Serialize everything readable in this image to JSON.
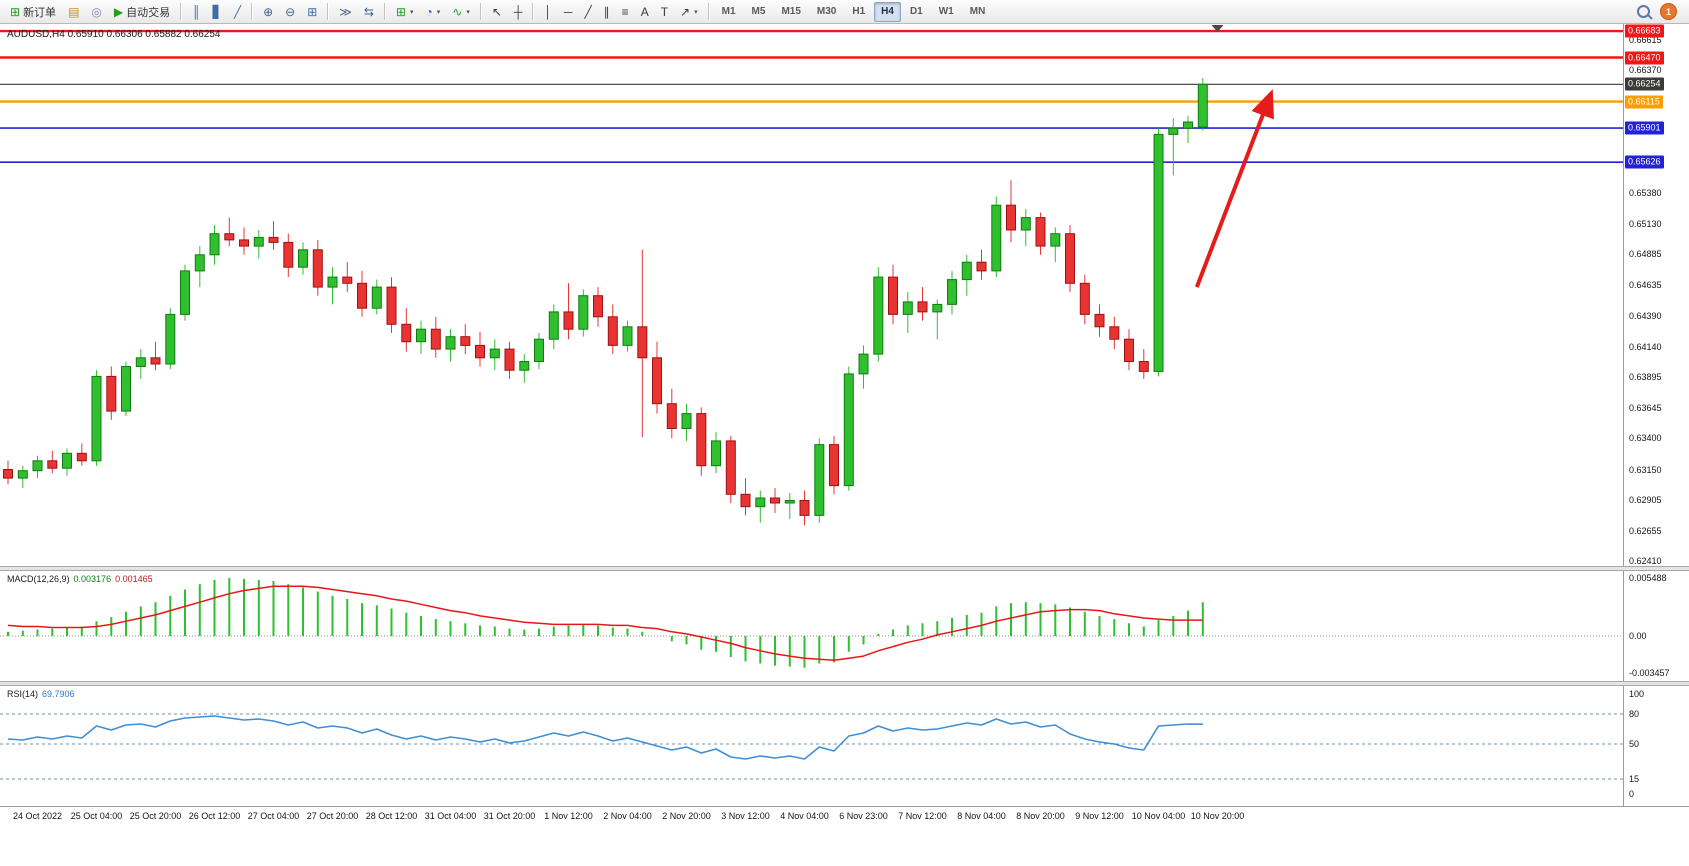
{
  "toolbar": {
    "dropdown_glyph": "▾",
    "groups": [
      {
        "name": "orders",
        "buttons": [
          {
            "name": "new-order",
            "glyph": "⊞",
            "glyph_color": "#1fa01f",
            "label": "新订单"
          },
          {
            "name": "charts-window",
            "glyph": "▤",
            "glyph_color": "#c09020"
          },
          {
            "name": "profiles",
            "glyph": "◎",
            "glyph_color": "#7a8aa0"
          },
          {
            "name": "auto-trading",
            "glyph": "▶",
            "glyph_color": "#1fa01f",
            "label": "自动交易"
          }
        ]
      },
      {
        "name": "chart-types",
        "buttons": [
          {
            "name": "bar-chart-type",
            "glyph": "║",
            "glyph_color": "#3a6ea5"
          },
          {
            "name": "candlestick-chart-type",
            "glyph": "▋",
            "glyph_color": "#3a6ea5"
          },
          {
            "name": "line-chart-type",
            "glyph": "╱",
            "glyph_color": "#3a6ea5"
          }
        ]
      },
      {
        "name": "zoom",
        "buttons": [
          {
            "name": "zoom-in",
            "glyph": "⊕",
            "glyph_color": "#44628a"
          },
          {
            "name": "zoom-out",
            "glyph": "⊖",
            "glyph_color": "#44628a"
          },
          {
            "name": "tile-windows",
            "glyph": "⊞",
            "glyph_color": "#3a6ea5"
          }
        ]
      },
      {
        "name": "scrolling",
        "buttons": [
          {
            "name": "auto-scroll",
            "glyph": "≫",
            "glyph_color": "#44628a"
          },
          {
            "name": "chart-shift",
            "glyph": "⇆",
            "glyph_color": "#44628a"
          }
        ]
      },
      {
        "name": "objects",
        "buttons": [
          {
            "name": "new-chart",
            "glyph": "⊞",
            "glyph_color": "#1fa01f",
            "dropdown": true
          },
          {
            "name": "period-presets",
            "glyph": "◔",
            "glyph_color": "#2a62b8",
            "dropdown": true
          },
          {
            "name": "indicators",
            "glyph": "∿",
            "glyph_color": "#1fa01f",
            "dropdown": true
          }
        ]
      },
      {
        "name": "drawing",
        "buttons": [
          {
            "name": "cursor",
            "glyph": "↖",
            "glyph_color": "#3c3c3c"
          },
          {
            "name": "crosshair",
            "glyph": "┼",
            "glyph_color": "#3c3c3c"
          }
        ]
      },
      {
        "name": "lines",
        "buttons": [
          {
            "name": "vertical-line",
            "glyph": "│",
            "glyph_color": "#3c3c3c"
          },
          {
            "name": "horizontal-line",
            "glyph": "─",
            "glyph_color": "#3c3c3c"
          },
          {
            "name": "trend-line",
            "glyph": "╱",
            "glyph_color": "#3c3c3c"
          },
          {
            "name": "equidistant-channel",
            "glyph": "∥",
            "glyph_color": "#3c3c3c"
          },
          {
            "name": "fibonacci",
            "glyph": "≡",
            "glyph_color": "#3c3c3c"
          },
          {
            "name": "text",
            "glyph": "A",
            "glyph_color": "#3c3c3c"
          },
          {
            "name": "text-label",
            "glyph": "T",
            "glyph_color": "#3c3c3c"
          },
          {
            "name": "arrows-tool",
            "glyph": "↗",
            "glyph_color": "#3c3c3c",
            "dropdown": true
          }
        ]
      }
    ],
    "timeframes": {
      "items": [
        "M1",
        "M5",
        "M15",
        "M30",
        "H1",
        "H4",
        "D1",
        "W1",
        "MN"
      ],
      "active": "H4"
    },
    "right": {
      "notification_count": "1"
    }
  },
  "chart_data": {
    "type": "candlestick",
    "symbol": "AUDUSD",
    "period": "H4",
    "ohlc_label": "AUDUSD,H4 0.65910 0.66306 0.65882 0.66254",
    "current_bar": {
      "open": "0.65910",
      "high": "0.66306",
      "low": "0.65882",
      "close": "0.66254"
    },
    "grid": false,
    "up_color": "#2fbf2f",
    "up_border": "#0f7d0f",
    "down_color": "#e93434",
    "down_border": "#9e1212",
    "y_axis": {
      "min": 0.62372,
      "max": 0.6674,
      "ticks": [
        "0.66615",
        "0.66370",
        "0.65380",
        "0.65130",
        "0.64885",
        "0.64635",
        "0.64390",
        "0.64140",
        "0.63895",
        "0.63645",
        "0.63400",
        "0.63150",
        "0.62905",
        "0.62655",
        "0.62410"
      ]
    },
    "levels": [
      {
        "name": "resistance-line-upper",
        "price": 0.66683,
        "label": "0.66683",
        "color": "#f21616",
        "width": 2.4
      },
      {
        "name": "resistance-line-lower",
        "price": 0.6647,
        "label": "0.66470",
        "color": "#f21616",
        "width": 2.4
      },
      {
        "name": "current-price-line",
        "price": 0.66254,
        "label": "0.66254",
        "color": "#3a3a3a",
        "width": 1.2
      },
      {
        "name": "orange-level-line",
        "price": 0.66115,
        "label": "0.66115",
        "color": "#ff9d00",
        "width": 2.4
      },
      {
        "name": "blue-level-upper",
        "price": 0.65901,
        "label": "0.65901",
        "color": "#2323d6",
        "width": 1.6
      },
      {
        "name": "blue-level-lower",
        "price": 0.65626,
        "label": "0.65626",
        "color": "#2323d6",
        "width": 1.6
      }
    ],
    "arrow": {
      "from_index": 80.6,
      "from_price": 0.6462,
      "to_index": 85.6,
      "to_price": 0.6617,
      "color": "#e51c1c"
    },
    "shift_marker_index": 82,
    "candles": [
      [
        0.6315,
        0.6322,
        0.6303,
        0.6308
      ],
      [
        0.6308,
        0.6318,
        0.63,
        0.6314
      ],
      [
        0.6314,
        0.6326,
        0.6308,
        0.6322
      ],
      [
        0.6322,
        0.633,
        0.6312,
        0.6316
      ],
      [
        0.6316,
        0.6332,
        0.631,
        0.6328
      ],
      [
        0.6328,
        0.6336,
        0.6318,
        0.6322
      ],
      [
        0.6322,
        0.6395,
        0.6318,
        0.639
      ],
      [
        0.639,
        0.6398,
        0.6355,
        0.6362
      ],
      [
        0.6362,
        0.6402,
        0.6358,
        0.6398
      ],
      [
        0.6398,
        0.6412,
        0.6388,
        0.6405
      ],
      [
        0.6405,
        0.6418,
        0.6395,
        0.64
      ],
      [
        0.64,
        0.6445,
        0.6396,
        0.644
      ],
      [
        0.644,
        0.648,
        0.6435,
        0.6475
      ],
      [
        0.6475,
        0.6495,
        0.6462,
        0.6488
      ],
      [
        0.6488,
        0.6512,
        0.648,
        0.6505
      ],
      [
        0.6505,
        0.6518,
        0.6495,
        0.65
      ],
      [
        0.65,
        0.651,
        0.6488,
        0.6495
      ],
      [
        0.6495,
        0.6508,
        0.6485,
        0.6502
      ],
      [
        0.6502,
        0.6515,
        0.6492,
        0.6498
      ],
      [
        0.6498,
        0.6505,
        0.647,
        0.6478
      ],
      [
        0.6478,
        0.6498,
        0.6472,
        0.6492
      ],
      [
        0.6492,
        0.65,
        0.6455,
        0.6462
      ],
      [
        0.6462,
        0.6478,
        0.6448,
        0.647
      ],
      [
        0.647,
        0.6482,
        0.6458,
        0.6465
      ],
      [
        0.6465,
        0.6475,
        0.6438,
        0.6445
      ],
      [
        0.6445,
        0.6468,
        0.644,
        0.6462
      ],
      [
        0.6462,
        0.647,
        0.6425,
        0.6432
      ],
      [
        0.6432,
        0.6445,
        0.641,
        0.6418
      ],
      [
        0.6418,
        0.6435,
        0.6408,
        0.6428
      ],
      [
        0.6428,
        0.6438,
        0.6405,
        0.6412
      ],
      [
        0.6412,
        0.6428,
        0.6402,
        0.6422
      ],
      [
        0.6422,
        0.6432,
        0.6408,
        0.6415
      ],
      [
        0.6415,
        0.6426,
        0.6398,
        0.6405
      ],
      [
        0.6405,
        0.642,
        0.6395,
        0.6412
      ],
      [
        0.6412,
        0.6418,
        0.6388,
        0.6395
      ],
      [
        0.6395,
        0.6408,
        0.6385,
        0.6402
      ],
      [
        0.6402,
        0.6425,
        0.6396,
        0.642
      ],
      [
        0.642,
        0.6448,
        0.6412,
        0.6442
      ],
      [
        0.6442,
        0.6465,
        0.642,
        0.6428
      ],
      [
        0.6428,
        0.646,
        0.6422,
        0.6455
      ],
      [
        0.6455,
        0.6462,
        0.643,
        0.6438
      ],
      [
        0.6438,
        0.6448,
        0.6408,
        0.6415
      ],
      [
        0.6415,
        0.6435,
        0.641,
        0.643
      ],
      [
        0.643,
        0.6492,
        0.6341,
        0.6405
      ],
      [
        0.6405,
        0.6418,
        0.636,
        0.6368
      ],
      [
        0.6368,
        0.638,
        0.634,
        0.6348
      ],
      [
        0.6348,
        0.6368,
        0.6338,
        0.636
      ],
      [
        0.636,
        0.6365,
        0.631,
        0.6318
      ],
      [
        0.6318,
        0.6345,
        0.6312,
        0.6338
      ],
      [
        0.6338,
        0.6342,
        0.6288,
        0.6295
      ],
      [
        0.6295,
        0.6308,
        0.6278,
        0.6285
      ],
      [
        0.6285,
        0.6298,
        0.6272,
        0.6292
      ],
      [
        0.6292,
        0.63,
        0.628,
        0.6288
      ],
      [
        0.6288,
        0.6296,
        0.6275,
        0.629
      ],
      [
        0.629,
        0.6298,
        0.627,
        0.6278
      ],
      [
        0.6278,
        0.634,
        0.6272,
        0.6335
      ],
      [
        0.6335,
        0.6342,
        0.6295,
        0.6302
      ],
      [
        0.6302,
        0.6398,
        0.6298,
        0.6392
      ],
      [
        0.6392,
        0.6415,
        0.638,
        0.6408
      ],
      [
        0.6408,
        0.6478,
        0.6402,
        0.647
      ],
      [
        0.647,
        0.648,
        0.6432,
        0.644
      ],
      [
        0.644,
        0.6458,
        0.6425,
        0.645
      ],
      [
        0.645,
        0.6462,
        0.6435,
        0.6442
      ],
      [
        0.6442,
        0.6452,
        0.642,
        0.6448
      ],
      [
        0.6448,
        0.6475,
        0.644,
        0.6468
      ],
      [
        0.6468,
        0.6488,
        0.6455,
        0.6482
      ],
      [
        0.6482,
        0.6492,
        0.6468,
        0.6475
      ],
      [
        0.6475,
        0.6535,
        0.647,
        0.6528
      ],
      [
        0.6528,
        0.6548,
        0.6498,
        0.6508
      ],
      [
        0.6508,
        0.6525,
        0.6495,
        0.6518
      ],
      [
        0.6518,
        0.6522,
        0.6488,
        0.6495
      ],
      [
        0.6495,
        0.651,
        0.6482,
        0.6505
      ],
      [
        0.6505,
        0.6512,
        0.6458,
        0.6465
      ],
      [
        0.6465,
        0.6472,
        0.6432,
        0.644
      ],
      [
        0.644,
        0.6448,
        0.6422,
        0.643
      ],
      [
        0.643,
        0.6438,
        0.6412,
        0.642
      ],
      [
        0.642,
        0.6428,
        0.6395,
        0.6402
      ],
      [
        0.6402,
        0.6412,
        0.6388,
        0.6394
      ],
      [
        0.6394,
        0.659,
        0.639,
        0.6585
      ],
      [
        0.6585,
        0.6598,
        0.6552,
        0.659
      ],
      [
        0.659,
        0.66,
        0.6578,
        0.6595
      ],
      [
        0.6591,
        0.66306,
        0.65882,
        0.66254
      ]
    ],
    "macd": {
      "label": "MACD(12,26,9)",
      "value_main": "0.003176",
      "value_signal": "0.001465",
      "hist_color": "#2fbf2f",
      "signal_color": "#e81717",
      "y_min": -0.00426,
      "y_max": 0.00615,
      "ticks": [
        "0.005488",
        "0.00",
        "-0.003457"
      ],
      "histogram": [
        0.0004,
        0.0005,
        0.0006,
        0.0007,
        0.0008,
        0.0009,
        0.0014,
        0.0018,
        0.0023,
        0.0028,
        0.0032,
        0.0038,
        0.0044,
        0.0049,
        0.0053,
        0.0055,
        0.0054,
        0.0053,
        0.0052,
        0.0049,
        0.0046,
        0.0042,
        0.0038,
        0.0035,
        0.0031,
        0.0029,
        0.0026,
        0.0022,
        0.0019,
        0.0016,
        0.0014,
        0.0012,
        0.001,
        0.0009,
        0.0007,
        0.0006,
        0.0007,
        0.0009,
        0.001,
        0.0011,
        0.001,
        0.0008,
        0.0007,
        0.0004,
        0.0,
        -0.0005,
        -0.0008,
        -0.0013,
        -0.0015,
        -0.002,
        -0.0024,
        -0.0026,
        -0.0028,
        -0.0029,
        -0.003,
        -0.0026,
        -0.0025,
        -0.0015,
        -0.0008,
        0.0002,
        0.0006,
        0.001,
        0.0012,
        0.0014,
        0.0017,
        0.002,
        0.0022,
        0.0028,
        0.0031,
        0.0032,
        0.0031,
        0.003,
        0.0027,
        0.0023,
        0.0019,
        0.0016,
        0.0012,
        0.0009,
        0.0015,
        0.0019,
        0.0024,
        0.0032
      ],
      "signal": [
        0.001,
        0.0009,
        0.0009,
        0.0008,
        0.0008,
        0.0008,
        0.0009,
        0.0011,
        0.0014,
        0.0017,
        0.002,
        0.0024,
        0.0028,
        0.0032,
        0.0036,
        0.004,
        0.0043,
        0.0045,
        0.0047,
        0.0047,
        0.0047,
        0.0046,
        0.0044,
        0.0042,
        0.004,
        0.0038,
        0.0035,
        0.0033,
        0.003,
        0.0027,
        0.0024,
        0.0022,
        0.0019,
        0.0017,
        0.0015,
        0.0013,
        0.0012,
        0.0011,
        0.0011,
        0.0011,
        0.0011,
        0.001,
        0.001,
        0.0008,
        0.0007,
        0.0004,
        0.0002,
        -0.0001,
        -0.0004,
        -0.0007,
        -0.0011,
        -0.0014,
        -0.0017,
        -0.0019,
        -0.0021,
        -0.0022,
        -0.0023,
        -0.0021,
        -0.0019,
        -0.0014,
        -0.001,
        -0.0006,
        -0.0003,
        0.0001,
        0.0004,
        0.0007,
        0.001,
        0.0014,
        0.0017,
        0.002,
        0.0023,
        0.0024,
        0.0025,
        0.0025,
        0.0024,
        0.0021,
        0.0019,
        0.0017,
        0.0016,
        0.0015,
        0.0015,
        0.0015
      ]
    },
    "rsi": {
      "label": "RSI(14)",
      "value": "69.7906",
      "line_color": "#3f8fd6",
      "y_min": 0,
      "y_max": 100,
      "ticks": [
        "100",
        "80",
        "50",
        "15",
        "0"
      ],
      "level_lines": [
        80,
        50,
        15
      ],
      "values": [
        55,
        54,
        57,
        55,
        58,
        56,
        68,
        64,
        69,
        70,
        67,
        73,
        76,
        77,
        78,
        76,
        74,
        75,
        73,
        69,
        72,
        66,
        68,
        66,
        61,
        65,
        59,
        55,
        58,
        54,
        57,
        55,
        52,
        55,
        51,
        53,
        57,
        61,
        58,
        62,
        58,
        53,
        56,
        52,
        48,
        44,
        47,
        41,
        45,
        37,
        35,
        38,
        36,
        38,
        35,
        47,
        43,
        58,
        61,
        68,
        63,
        66,
        64,
        65,
        68,
        71,
        69,
        75,
        70,
        72,
        67,
        69,
        60,
        55,
        52,
        50,
        46,
        44,
        68,
        69,
        70,
        69.79
      ]
    },
    "time_axis": {
      "first_label_index": 2,
      "bars_per_label": 4,
      "labels": [
        "24 Oct 2022",
        "25 Oct 04:00",
        "25 Oct 20:00",
        "26 Oct 12:00",
        "27 Oct 04:00",
        "27 Oct 20:00",
        "28 Oct 12:00",
        "31 Oct 04:00",
        "31 Oct 20:00",
        "1 Nov 12:00",
        "2 Nov 04:00",
        "2 Nov 20:00",
        "3 Nov 12:00",
        "4 Nov 04:00",
        "6 Nov 23:00",
        "7 Nov 12:00",
        "8 Nov 04:00",
        "8 Nov 20:00",
        "9 Nov 12:00",
        "10 Nov 04:00",
        "10 Nov 20:00"
      ]
    }
  }
}
